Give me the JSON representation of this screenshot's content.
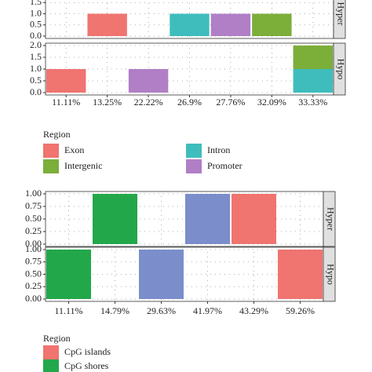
{
  "chart_data": [
    {
      "type": "bar",
      "stacked": true,
      "legend_title": "Region",
      "categories": [
        "11.11%",
        "13.25%",
        "22.22%",
        "26.9%",
        "27.76%",
        "32.09%",
        "33.33%"
      ],
      "series": [
        {
          "name": "Exon",
          "color": "#f07470"
        },
        {
          "name": "Intergenic",
          "color": "#7cae3a"
        },
        {
          "name": "Intron",
          "color": "#3fbdbd"
        },
        {
          "name": "Promoter",
          "color": "#b07fc6"
        }
      ],
      "panels": [
        {
          "label": "Hyper",
          "ylim": [
            0,
            2
          ],
          "yticks": [
            {
              "value": 0,
              "label": "0.0"
            },
            0.5,
            {
              "value": 1,
              "label": "1.0"
            },
            1.5
          ],
          "values": [
            [
              null,
              1,
              null,
              null,
              null,
              null,
              null
            ],
            [
              null,
              null,
              null,
              null,
              null,
              1,
              null
            ],
            [
              null,
              null,
              null,
              1,
              null,
              null,
              null
            ],
            [
              null,
              null,
              null,
              null,
              1,
              null,
              null
            ]
          ]
        },
        {
          "label": "Hypo",
          "ylim": [
            0,
            2
          ],
          "yticks": [
            {
              "value": 0,
              "label": "0.0"
            },
            0.5,
            {
              "value": 1,
              "label": "1.0"
            },
            1.5,
            {
              "value": 2,
              "label": "2.0"
            }
          ],
          "values": [
            [
              1,
              null,
              null,
              null,
              null,
              null,
              null
            ],
            [
              null,
              null,
              null,
              null,
              null,
              null,
              1
            ],
            [
              null,
              null,
              null,
              null,
              null,
              null,
              1
            ],
            [
              null,
              null,
              1,
              null,
              null,
              null,
              null
            ]
          ]
        }
      ]
    },
    {
      "type": "bar",
      "stacked": true,
      "legend_title": "Region",
      "categories": [
        "11.11%",
        "14.79%",
        "29.63%",
        "41.97%",
        "43.29%",
        "59.26%"
      ],
      "series": [
        {
          "name": "CpG islands",
          "color": "#f07470"
        },
        {
          "name": "CpG shores",
          "color": "#22a84a"
        },
        {
          "color": "#7b8ecb"
        }
      ],
      "panels": [
        {
          "label": "Hyper",
          "ylim": [
            0,
            1
          ],
          "yticks": [
            {
              "value": 0,
              "label": "0.00"
            },
            0.25,
            {
              "value": 0.5,
              "label": "0.50"
            },
            0.75,
            {
              "value": 1,
              "label": "1.00"
            }
          ],
          "values": [
            [
              null,
              null,
              null,
              null,
              1,
              null
            ],
            [
              null,
              1,
              null,
              null,
              null,
              null
            ],
            [
              null,
              null,
              null,
              1,
              null,
              null
            ]
          ]
        },
        {
          "label": "Hypo",
          "ylim": [
            0,
            1
          ],
          "yticks": [
            {
              "value": 0,
              "label": "0.00"
            },
            0.25,
            {
              "value": 0.5,
              "label": "0.50"
            },
            0.75,
            {
              "value": 1,
              "label": "1.00"
            }
          ],
          "values": [
            [
              null,
              null,
              null,
              null,
              null,
              1
            ],
            [
              1,
              null,
              null,
              null,
              null,
              null
            ],
            [
              null,
              null,
              1,
              null,
              null,
              null
            ]
          ]
        }
      ]
    }
  ]
}
